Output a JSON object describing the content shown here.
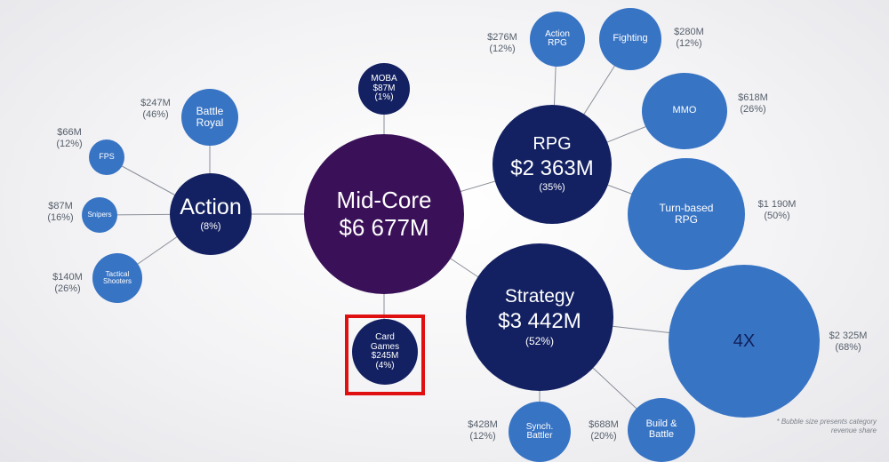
{
  "root": {
    "name": "Mid-Core",
    "value": "$6 677M"
  },
  "groups": {
    "action": {
      "name": "Action",
      "share": "(8%)",
      "children": {
        "battle_royal": {
          "line1": "Battle",
          "line2": "Royal",
          "value": "$247M",
          "share": "(46%)"
        },
        "fps": {
          "name": "FPS",
          "value": "$66M",
          "share": "(12%)"
        },
        "snipers": {
          "name": "Snipers",
          "value": "$87M",
          "share": "(16%)"
        },
        "tactical_shooters": {
          "line1": "Tactical",
          "line2": "Shooters",
          "value": "$140M",
          "share": "(26%)"
        }
      }
    },
    "rpg": {
      "name": "RPG",
      "value": "$2 363M",
      "share": "(35%)",
      "children": {
        "action_rpg": {
          "line1": "Action",
          "line2": "RPG",
          "value": "$276M",
          "share": "(12%)"
        },
        "fighting": {
          "name": "Fighting",
          "value": "$280M",
          "share": "(12%)"
        },
        "mmo": {
          "name": "MMO",
          "value": "$618M",
          "share": "(26%)"
        },
        "turn_based_rpg": {
          "line1": "Turn-based",
          "line2": "RPG",
          "value": "$1 190M",
          "share": "(50%)"
        }
      }
    },
    "strategy": {
      "name": "Strategy",
      "value": "$3 442M",
      "share": "(52%)",
      "children": {
        "four_x": {
          "name": "4X",
          "value": "$2 325M",
          "share": "(68%)"
        },
        "synch_battler": {
          "line1": "Synch.",
          "line2": "Battler",
          "value": "$428M",
          "share": "(12%)"
        },
        "build_battle": {
          "line1": "Build &",
          "line2": "Battle",
          "value": "$688M",
          "share": "(20%)"
        }
      }
    },
    "moba": {
      "name": "MOBA",
      "value": "$87M",
      "share": "(1%)"
    },
    "card_games": {
      "line1": "Card",
      "line2": "Games",
      "value": "$245M",
      "share": "(4%)"
    }
  },
  "footnote": {
    "line1": "* Bubble size presents category",
    "line2": "revenue share"
  },
  "colors": {
    "core": "#3a1158",
    "dark": "#132162",
    "mid": "#1e3f8a",
    "light": "#3874c4",
    "highlight": "#e01010",
    "connector": "#8a8f98"
  }
}
